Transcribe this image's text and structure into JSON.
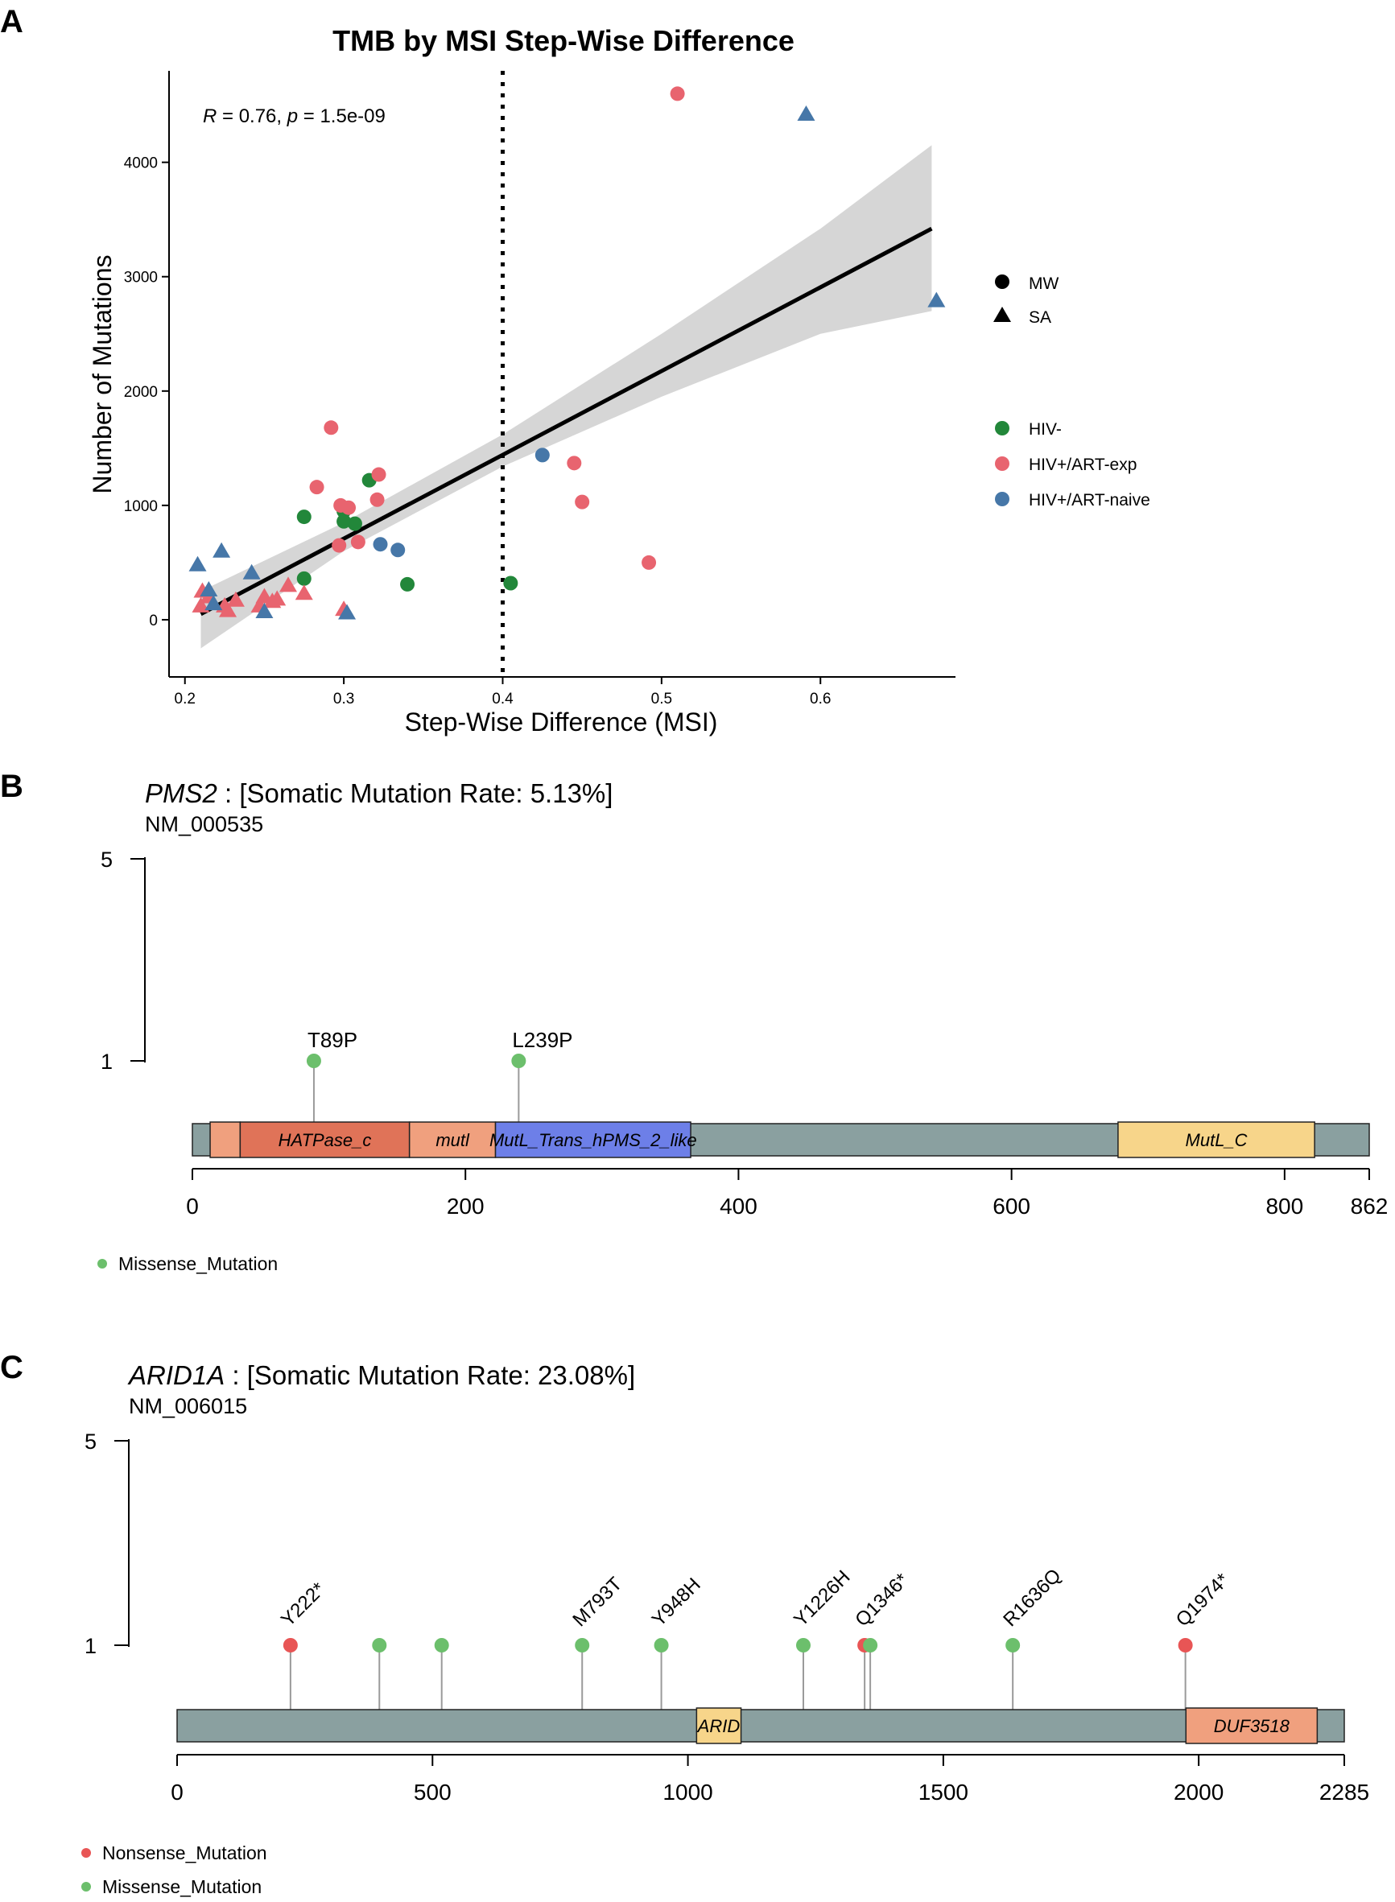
{
  "panels": {
    "A": {
      "letter": "A"
    },
    "B": {
      "letter": "B"
    },
    "C": {
      "letter": "C"
    }
  },
  "chart_data": [
    {
      "panel": "A",
      "type": "scatter",
      "title": "TMB by MSI Step-Wise Difference",
      "xlabel": "Step-Wise Difference (MSI)",
      "ylabel": "Number of Mutations",
      "xlim": [
        0.19,
        0.685
      ],
      "ylim": [
        -500,
        4800
      ],
      "xticks": [
        0.2,
        0.3,
        0.4,
        0.5,
        0.6
      ],
      "xtick_labels": [
        "0.2",
        "0.3",
        "0.4",
        "0.5",
        "0.6"
      ],
      "yticks": [
        0,
        1000,
        2000,
        3000,
        4000
      ],
      "ytick_labels": [
        "0",
        "1000",
        "2000",
        "3000",
        "4000"
      ],
      "annotation_r": "R",
      "annotation_mid": " = 0.76, ",
      "annotation_p": "p",
      "annotation_tail": " = 1.5e-09",
      "vline_x": 0.4,
      "fit_line": {
        "x": [
          0.21,
          0.67
        ],
        "y": [
          50,
          3420
        ]
      },
      "ci_band": {
        "x": [
          0.21,
          0.3,
          0.4,
          0.5,
          0.6,
          0.67
        ],
        "upper": [
          250,
          850,
          1620,
          2500,
          3420,
          4150
        ],
        "lower": [
          -250,
          600,
          1340,
          1950,
          2500,
          2700
        ]
      },
      "legend_shape_title": "",
      "legend_shape": [
        {
          "label": "MW",
          "shape": "circle"
        },
        {
          "label": "SA",
          "shape": "triangle"
        }
      ],
      "legend_color": [
        {
          "label": "HIV-",
          "color": "#22873a"
        },
        {
          "label": "HIV+/ART-exp",
          "color": "#e8646f"
        },
        {
          "label": "HIV+/ART-naive",
          "color": "#4677a8"
        }
      ],
      "series": [
        {
          "name": "HIV- MW",
          "shape": "circle",
          "color": "#22873a",
          "points": [
            [
              0.275,
              900
            ],
            [
              0.3,
              950
            ],
            [
              0.3,
              860
            ],
            [
              0.307,
              840
            ],
            [
              0.316,
              1220
            ],
            [
              0.275,
              360
            ],
            [
              0.34,
              310
            ],
            [
              0.405,
              320
            ]
          ]
        },
        {
          "name": "HIV+/ART-exp MW",
          "shape": "circle",
          "color": "#e8646f",
          "points": [
            [
              0.51,
              4600
            ],
            [
              0.292,
              1680
            ],
            [
              0.283,
              1160
            ],
            [
              0.322,
              1270
            ],
            [
              0.298,
              1000
            ],
            [
              0.303,
              980
            ],
            [
              0.321,
              1050
            ],
            [
              0.297,
              650
            ],
            [
              0.309,
              680
            ],
            [
              0.445,
              1370
            ],
            [
              0.45,
              1030
            ],
            [
              0.492,
              500
            ]
          ]
        },
        {
          "name": "HIV+/ART-naive MW",
          "shape": "circle",
          "color": "#4677a8",
          "points": [
            [
              0.425,
              1440
            ],
            [
              0.323,
              660
            ],
            [
              0.334,
              610
            ]
          ]
        },
        {
          "name": "HIV+/ART-exp SA",
          "shape": "triangle",
          "color": "#e8646f",
          "points": [
            [
              0.211,
              250
            ],
            [
              0.215,
              200
            ],
            [
              0.21,
              120
            ],
            [
              0.225,
              120
            ],
            [
              0.227,
              80
            ],
            [
              0.232,
              170
            ],
            [
              0.247,
              120
            ],
            [
              0.25,
              200
            ],
            [
              0.255,
              160
            ],
            [
              0.258,
              180
            ],
            [
              0.265,
              300
            ],
            [
              0.275,
              230
            ],
            [
              0.3,
              90
            ]
          ]
        },
        {
          "name": "HIV+/ART-naive SA",
          "shape": "triangle",
          "color": "#4677a8",
          "points": [
            [
              0.591,
              4420
            ],
            [
              0.673,
              2790
            ],
            [
              0.208,
              480
            ],
            [
              0.223,
              600
            ],
            [
              0.242,
              410
            ],
            [
              0.215,
              260
            ],
            [
              0.218,
              140
            ],
            [
              0.25,
              70
            ],
            [
              0.302,
              60
            ]
          ]
        }
      ]
    },
    {
      "panel": "B",
      "type": "lollipop",
      "gene": "PMS2",
      "title_rest": " : [Somatic Mutation Rate: 5.13%]",
      "transcript": "NM_000535",
      "protein_length": 862,
      "xticks": [
        0,
        200,
        400,
        600,
        800,
        862
      ],
      "xtick_labels": [
        "0",
        "200",
        "400",
        "600",
        "800",
        "862"
      ],
      "yticks": [
        1,
        5
      ],
      "ytick_labels": [
        "1",
        "5"
      ],
      "domains": [
        {
          "name": "",
          "start": 13,
          "end": 35,
          "color": "#f0a07e"
        },
        {
          "name": "HATPase_c",
          "start": 35,
          "end": 159,
          "color": "#e07358"
        },
        {
          "name": "mutl",
          "start": 159,
          "end": 222,
          "color": "#f0a07e"
        },
        {
          "name": "MutL_Trans_hPMS_2_like",
          "start": 222,
          "end": 365,
          "color": "#6d7fe8"
        },
        {
          "name": "MutL_C",
          "start": 678,
          "end": 822,
          "color": "#f7d58a"
        }
      ],
      "mutations": [
        {
          "label": "T89P",
          "pos": 89,
          "count": 1,
          "type": "Missense_Mutation"
        },
        {
          "label": "L239P",
          "pos": 239,
          "count": 1,
          "type": "Missense_Mutation"
        }
      ],
      "legend": [
        {
          "label": "Missense_Mutation",
          "color": "#6cbf6c"
        }
      ]
    },
    {
      "panel": "C",
      "type": "lollipop",
      "gene": "ARID1A",
      "title_rest": " : [Somatic Mutation Rate: 23.08%]",
      "transcript": "NM_006015",
      "protein_length": 2285,
      "xticks": [
        0,
        500,
        1000,
        1500,
        2000,
        2285
      ],
      "xtick_labels": [
        "0",
        "500",
        "1000",
        "1500",
        "2000",
        "2285"
      ],
      "yticks": [
        1,
        5
      ],
      "ytick_labels": [
        "1",
        "5"
      ],
      "domains": [
        {
          "name": "ARID",
          "start": 1017,
          "end": 1104,
          "color": "#f7d58a"
        },
        {
          "name": "DUF3518",
          "start": 1975,
          "end": 2232,
          "color": "#f0a07e"
        }
      ],
      "mutations": [
        {
          "label": "Y222*",
          "pos": 222,
          "count": 1,
          "type": "Nonsense_Mutation"
        },
        {
          "label": "",
          "pos": 396,
          "count": 1,
          "type": "Missense_Mutation"
        },
        {
          "label": "",
          "pos": 518,
          "count": 1,
          "type": "Missense_Mutation"
        },
        {
          "label": "M793T",
          "pos": 793,
          "count": 1,
          "type": "Missense_Mutation"
        },
        {
          "label": "Y948H",
          "pos": 948,
          "count": 1,
          "type": "Missense_Mutation"
        },
        {
          "label": "Y1226H",
          "pos": 1226,
          "count": 1,
          "type": "Missense_Mutation"
        },
        {
          "label": "Q1346*",
          "pos": 1346,
          "count": 1,
          "type": "Nonsense_Mutation"
        },
        {
          "label": "",
          "pos": 1357,
          "count": 1,
          "type": "Missense_Mutation"
        },
        {
          "label": "R1636Q",
          "pos": 1636,
          "count": 1,
          "type": "Missense_Mutation"
        },
        {
          "label": "Q1974*",
          "pos": 1974,
          "count": 1,
          "type": "Nonsense_Mutation"
        }
      ],
      "legend": [
        {
          "label": "Nonsense_Mutation",
          "color": "#e85555"
        },
        {
          "label": "Missense_Mutation",
          "color": "#6cbf6c"
        }
      ]
    }
  ]
}
